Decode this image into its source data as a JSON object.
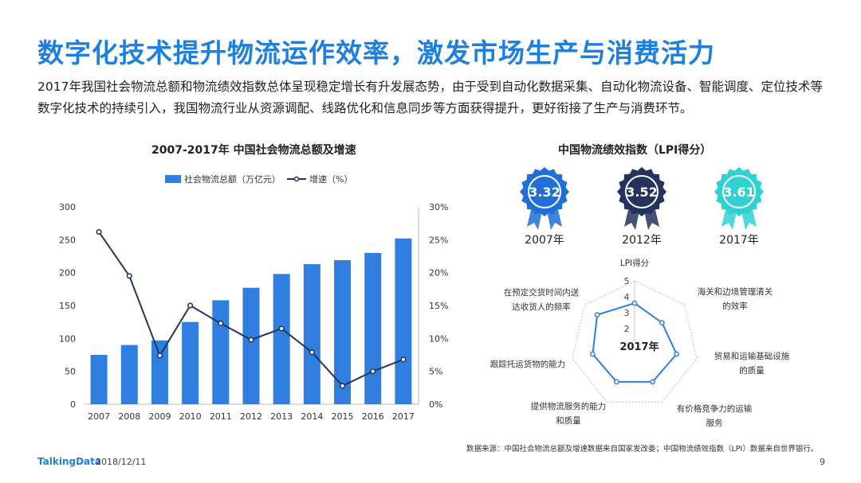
{
  "header": {
    "title": "数字化技术提升物流运作效率，激发市场生产与消费活力",
    "intro": "2017年我国社会物流总额和物流绩效指数总体呈现稳定增长有升发展态势，由于受到自动化数据采集、自动化物流设备、智能调度、定位技术等数字化技术的持续引入，我国物流行业从资源调配、线路优化和信息同步等方面获得提升，更好衔接了生产与消费环节。"
  },
  "chart_data": [
    {
      "type": "bar+line",
      "title": "2007-2017年 中国社会物流总额及增速",
      "categories": [
        "2007",
        "2008",
        "2009",
        "2010",
        "2011",
        "2012",
        "2013",
        "2014",
        "2015",
        "2016",
        "2017"
      ],
      "series": [
        {
          "name": "社会物流总额（万亿元）",
          "type": "bar",
          "axis": "left",
          "values": [
            75,
            90,
            97,
            125,
            158,
            177,
            198,
            213,
            219,
            230,
            252
          ]
        },
        {
          "name": "增速（%）",
          "type": "line",
          "axis": "right",
          "values": [
            26.2,
            19.5,
            7.4,
            15.0,
            12.3,
            9.8,
            11.5,
            7.9,
            2.8,
            5.0,
            6.8
          ]
        }
      ],
      "yleft_ticks": [
        "0",
        "50",
        "100",
        "150",
        "200",
        "250",
        "300"
      ],
      "yright_ticks": [
        "0%",
        "5%",
        "10%",
        "15%",
        "20%",
        "25%",
        "30%"
      ],
      "ylim_left": [
        0,
        300
      ],
      "ylim_right": [
        0,
        30
      ],
      "legend": "top-center",
      "bar_color": "#2f7ee0",
      "line_color": "#26355e"
    },
    {
      "type": "badge-values",
      "title": "中国物流绩效指数（LPI得分）",
      "items": [
        {
          "year": "2007年",
          "value": "3.32",
          "color": "#1f6fd6"
        },
        {
          "year": "2012年",
          "value": "3.52",
          "color": "#24325e"
        },
        {
          "year": "2017年",
          "value": "3.61",
          "color": "#2fd1d1"
        }
      ]
    },
    {
      "type": "radar",
      "center_label": "2017年",
      "axis_title": "LPI得分",
      "rlim": [
        1,
        5
      ],
      "scale_ticks": [
        "2",
        "3",
        "4",
        "5"
      ],
      "axes": [
        {
          "label_lines": [
            "LPI得分"
          ],
          "value": 3.6
        },
        {
          "label_lines": [
            "海关和边境管理清关",
            "的效率"
          ],
          "value": 3.2
        },
        {
          "label_lines": [
            "贸易和运输基础设施",
            "的质量"
          ],
          "value": 3.7
        },
        {
          "label_lines": [
            "有价格竞争力的运输",
            "服务"
          ],
          "value": 3.6
        },
        {
          "label_lines": [
            "提供物流服务的能力",
            "和质量"
          ],
          "value": 3.6
        },
        {
          "label_lines": [
            "跟踪托运货物的能力"
          ],
          "value": 3.7
        },
        {
          "label_lines": [
            "在预定交货时间内送",
            "达收货人的频率"
          ],
          "value": 4.0
        }
      ],
      "line_color": "#2f7ee0"
    }
  ],
  "footer": {
    "source": "数据来源：中国社会物流总额及增速数据来自国家发改委；中国物流绩效指数（LPI）数据来自世界银行。",
    "logo": "TalkingData",
    "date": "2018/12/11",
    "page": "9"
  }
}
